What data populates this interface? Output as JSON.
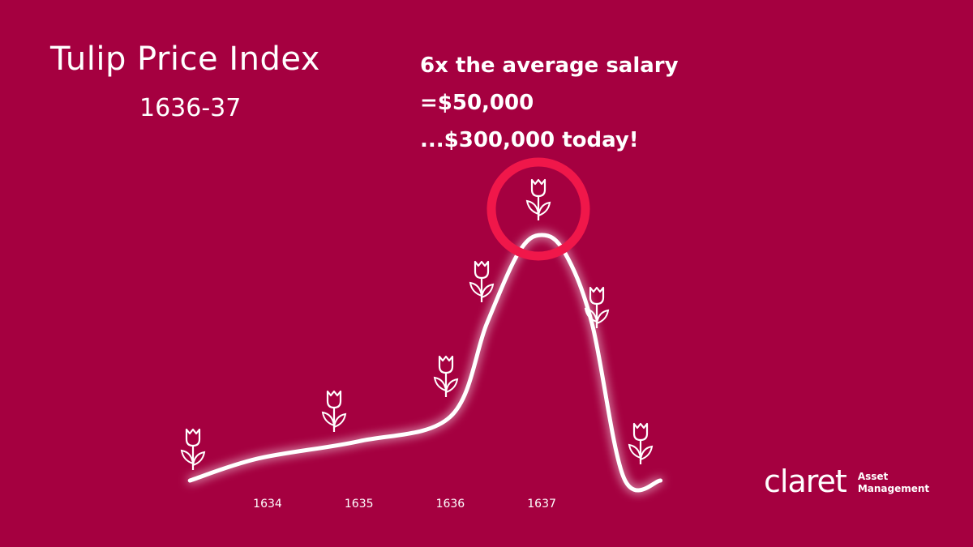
{
  "header": {
    "title": "Tulip Price Index",
    "subtitle": "1636-37"
  },
  "annotation": [
    "6x the average salary",
    "=$50,000",
    "...$300,000 today!"
  ],
  "logo": {
    "wordmark": "claret",
    "sub_line1": "Asset",
    "sub_line2": "Management"
  },
  "colors": {
    "background": "#A50040",
    "line": "#FFFFFF",
    "highlight_circle": "#F0174A"
  },
  "chart_data": {
    "type": "line",
    "title": "Tulip Price Index",
    "subtitle": "1636-37",
    "categories": [
      "1634",
      "1635",
      "1636",
      "1637"
    ],
    "x": [
      1633.15,
      1633.9,
      1635.0,
      1636.0,
      1636.4,
      1636.75,
      1637.0,
      1637.25,
      1637.55,
      1637.9,
      1638.3
    ],
    "values": [
      0,
      9,
      16,
      26,
      64,
      93,
      100,
      93,
      64,
      1,
      0
    ],
    "y_axis": "none (relative index)",
    "grid": false,
    "legend": "none",
    "markers": "tulip-icon",
    "highlight": "peak circled at 1637"
  }
}
